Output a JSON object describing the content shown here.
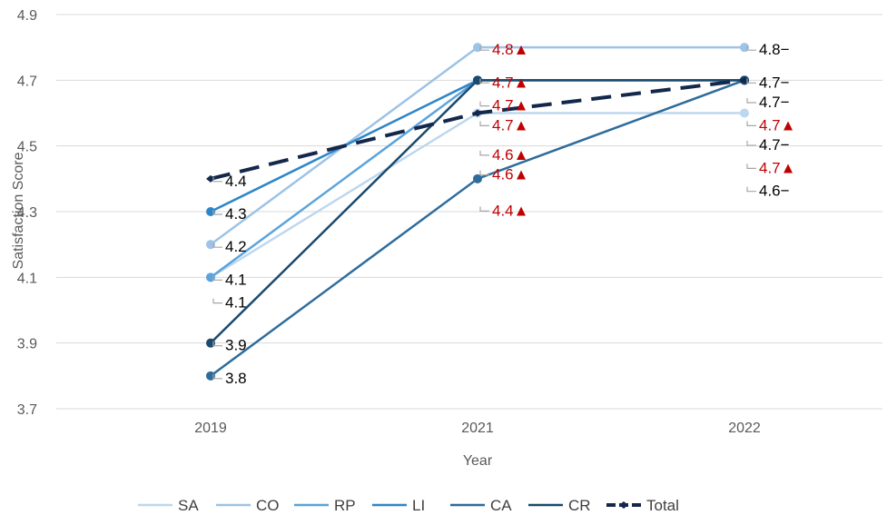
{
  "chart_data": {
    "type": "line",
    "x": [
      "2019",
      "2021",
      "2022"
    ],
    "xlabel": "Year",
    "ylabel": "Satisfaction Score",
    "ylim": [
      3.7,
      4.9
    ],
    "yticks": [
      "3.7",
      "3.9",
      "4.1",
      "4.3",
      "4.5",
      "4.7",
      "4.9"
    ],
    "grid": true,
    "legend_position": "bottom",
    "series": [
      {
        "name": "SA",
        "color": "#bdd7ee",
        "dashed": false,
        "values": [
          4.1,
          4.6,
          4.6
        ]
      },
      {
        "name": "CO",
        "color": "#9dc3e6",
        "dashed": false,
        "values": [
          4.2,
          4.8,
          4.8
        ]
      },
      {
        "name": "RP",
        "color": "#5ba3dc",
        "dashed": false,
        "values": [
          4.1,
          4.7,
          4.7
        ]
      },
      {
        "name": "LI",
        "color": "#2e86c8",
        "dashed": false,
        "values": [
          4.3,
          4.7,
          4.7
        ]
      },
      {
        "name": "CA",
        "color": "#2e6c9c",
        "dashed": false,
        "values": [
          3.8,
          4.4,
          4.7
        ]
      },
      {
        "name": "CR",
        "color": "#1b4a6e",
        "dashed": false,
        "values": [
          3.9,
          4.7,
          4.7
        ]
      },
      {
        "name": "Total",
        "color": "#14284b",
        "dashed": true,
        "values": [
          4.4,
          4.6,
          4.7
        ]
      }
    ],
    "colors": {
      "increase": "#c00000",
      "neutral": "#000000"
    },
    "data_labels": {
      "2019": [
        {
          "text": "4.4",
          "y": 4.4
        },
        {
          "text": "4.3",
          "y": 4.3
        },
        {
          "text": "4.2",
          "y": 4.2
        },
        {
          "text": "4.1",
          "y": 4.1
        },
        {
          "text": "4.1",
          "y": 4.03
        },
        {
          "text": "3.9",
          "y": 3.9
        },
        {
          "text": "3.8",
          "y": 3.8
        }
      ],
      "2021": [
        {
          "text": "4.8",
          "y": 4.8,
          "marker": "▲"
        },
        {
          "text": "4.7",
          "y": 4.7,
          "marker": "▲"
        },
        {
          "text": "4.7",
          "y": 4.63,
          "marker": "▲"
        },
        {
          "text": "4.7",
          "y": 4.57,
          "marker": "▲"
        },
        {
          "text": "4.6",
          "y": 4.48,
          "marker": "▲"
        },
        {
          "text": "4.6",
          "y": 4.42,
          "marker": "▲"
        },
        {
          "text": "4.4",
          "y": 4.31,
          "marker": "▲"
        }
      ],
      "2022": [
        {
          "text": "4.8",
          "y": 4.8,
          "marker": "−"
        },
        {
          "text": "4.7",
          "y": 4.7,
          "marker": "−"
        },
        {
          "text": "4.7",
          "y": 4.64,
          "marker": "−"
        },
        {
          "text": "4.7",
          "y": 4.57,
          "marker": "▲"
        },
        {
          "text": "4.7",
          "y": 4.51,
          "marker": "−"
        },
        {
          "text": "4.7",
          "y": 4.44,
          "marker": "▲"
        },
        {
          "text": "4.6",
          "y": 4.37,
          "marker": "−"
        }
      ]
    }
  }
}
